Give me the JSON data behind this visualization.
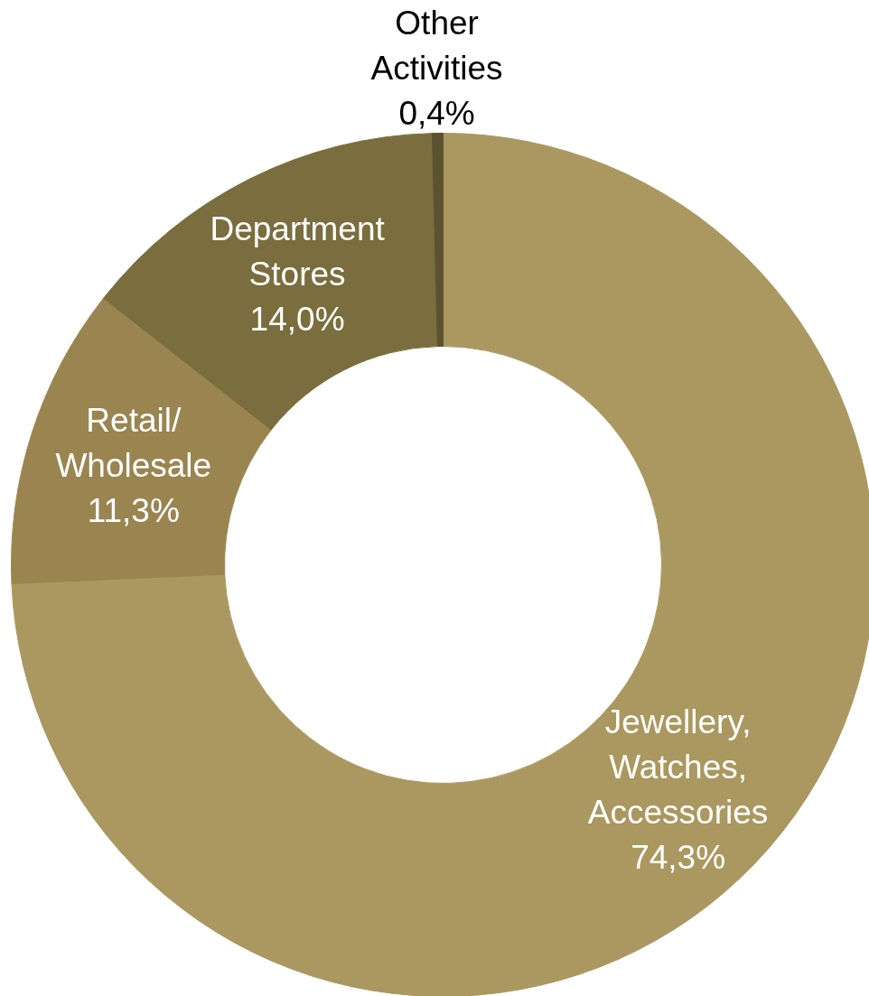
{
  "chart_data": {
    "type": "donut",
    "categories": [
      "Jewellery, Watches, Accessories",
      "Retail/ Wholesale",
      "Department Stores",
      "Other Activities"
    ],
    "values": [
      74.3,
      11.3,
      14.0,
      0.4
    ],
    "value_labels": [
      "74,3%",
      "11,3%",
      "14,0%",
      "0,4%"
    ],
    "colors": [
      "#aa9860",
      "#9a8550",
      "#7a6d3e",
      "#5c5230"
    ],
    "legend": false
  }
}
